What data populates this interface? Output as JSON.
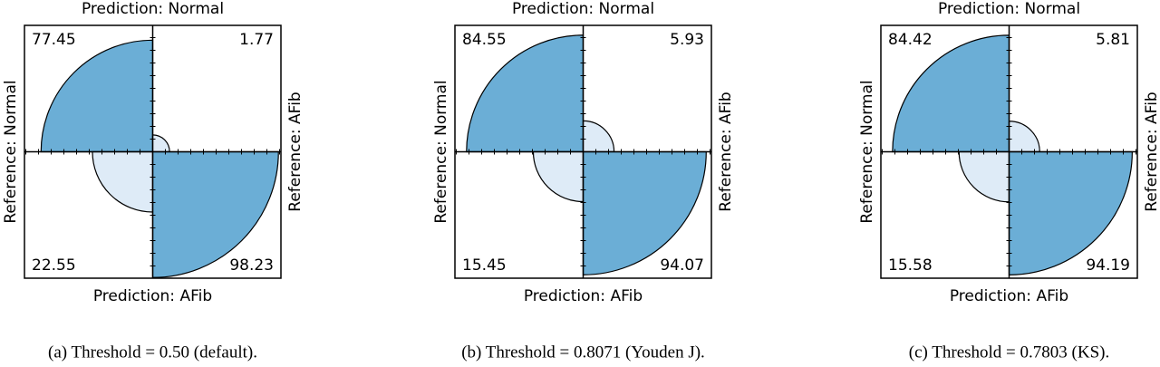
{
  "chart_data": [
    {
      "type": "fourfold",
      "caption": "(a) Threshold = 0.50 (default).",
      "top_label": "Prediction: Normal",
      "bottom_label": "Prediction: AFib",
      "left_label": "Reference: Normal",
      "right_label": "Reference: AFib",
      "values": [
        77.45,
        1.77,
        22.55,
        98.23
      ],
      "colors": [
        "#6baed6",
        "#deebf7",
        "#deebf7",
        "#6baed6"
      ]
    },
    {
      "type": "fourfold",
      "caption": "(b) Threshold = 0.8071 (Youden J).",
      "top_label": "Prediction: Normal",
      "bottom_label": "Prediction: AFib",
      "left_label": "Reference: Normal",
      "right_label": "Reference: AFib",
      "values": [
        84.55,
        5.93,
        15.45,
        94.07
      ],
      "colors": [
        "#6baed6",
        "#deebf7",
        "#deebf7",
        "#6baed6"
      ]
    },
    {
      "type": "fourfold",
      "caption": "(c) Threshold = 0.7803 (KS).",
      "top_label": "Prediction: Normal",
      "bottom_label": "Prediction: AFib",
      "left_label": "Reference: Normal",
      "right_label": "Reference: AFib",
      "values": [
        84.42,
        5.81,
        15.58,
        94.19
      ],
      "colors": [
        "#6baed6",
        "#deebf7",
        "#deebf7",
        "#6baed6"
      ]
    }
  ]
}
